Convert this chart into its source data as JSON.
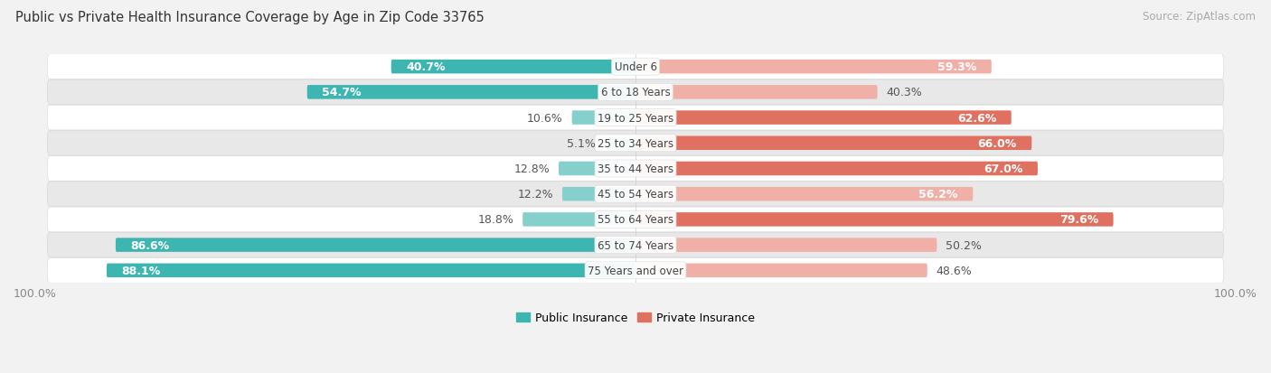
{
  "title": "Public vs Private Health Insurance Coverage by Age in Zip Code 33765",
  "source": "Source: ZipAtlas.com",
  "categories": [
    "Under 6",
    "6 to 18 Years",
    "19 to 25 Years",
    "25 to 34 Years",
    "35 to 44 Years",
    "45 to 54 Years",
    "55 to 64 Years",
    "65 to 74 Years",
    "75 Years and over"
  ],
  "public_values": [
    40.7,
    54.7,
    10.6,
    5.1,
    12.8,
    12.2,
    18.8,
    86.6,
    88.1
  ],
  "private_values": [
    59.3,
    40.3,
    62.6,
    66.0,
    67.0,
    56.2,
    79.6,
    50.2,
    48.6
  ],
  "public_color_strong": "#3db5b0",
  "public_color_light": "#85d0cc",
  "private_color_strong": "#e07060",
  "private_color_light": "#f0b0a8",
  "bg_color": "#f2f2f2",
  "row_colors": [
    "#ffffff",
    "#e8e8e8"
  ],
  "center_label_bg": "#ffffff",
  "label_color_outside": "#555555",
  "label_color_inside": "#ffffff",
  "xtick_label_color": "#888888",
  "title_color": "#333333",
  "source_color": "#aaaaaa",
  "title_fontsize": 10.5,
  "source_fontsize": 8.5,
  "label_fontsize": 9,
  "cat_fontsize": 8.5,
  "xtick_fontsize": 9,
  "bar_height": 0.55,
  "max_val": 100.0,
  "inside_threshold_pub": 25.0,
  "inside_threshold_priv": 55.0
}
